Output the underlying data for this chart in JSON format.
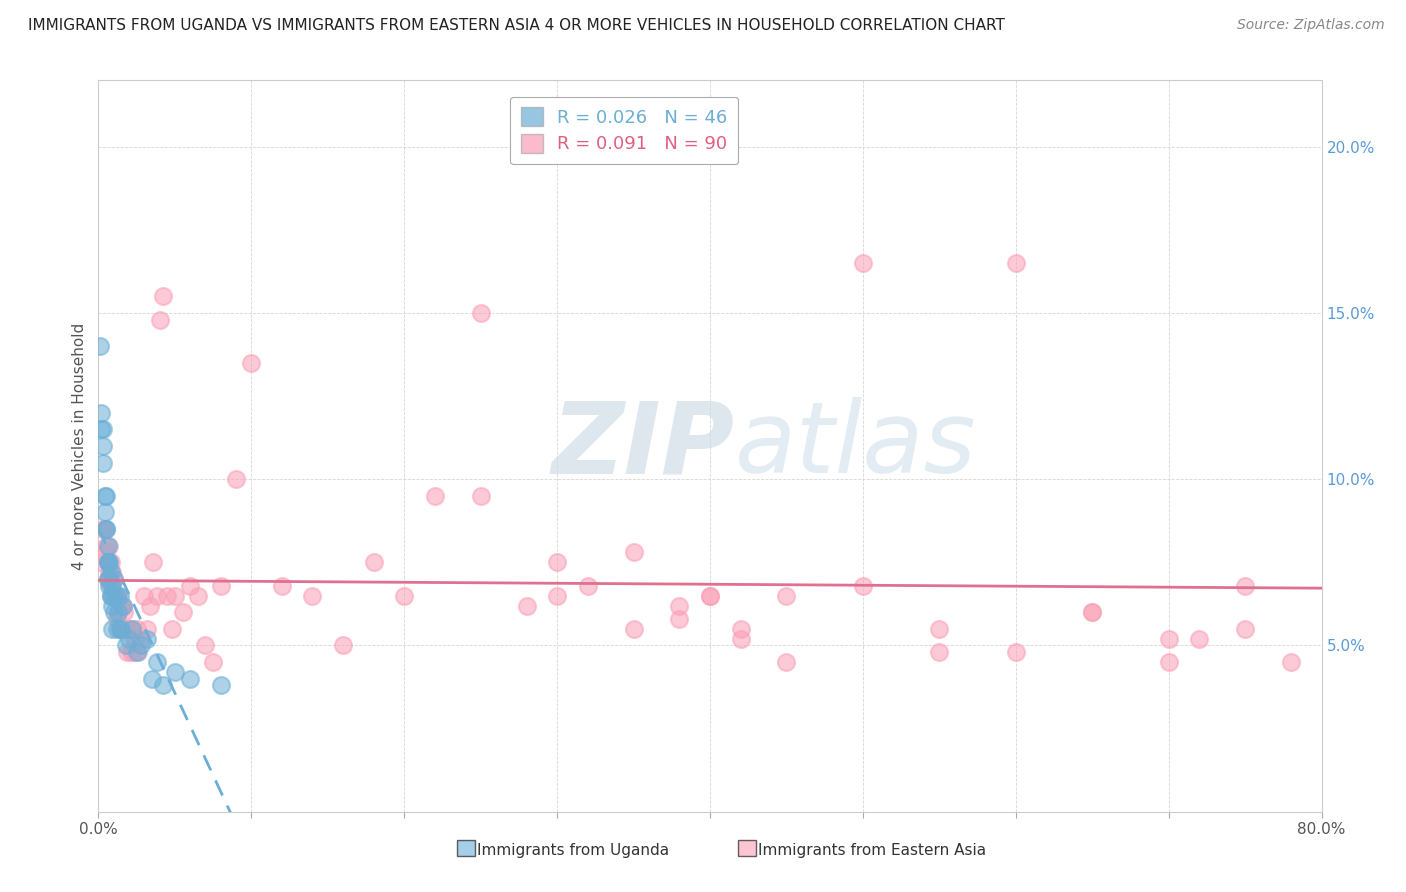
{
  "title": "IMMIGRANTS FROM UGANDA VS IMMIGRANTS FROM EASTERN ASIA 4 OR MORE VEHICLES IN HOUSEHOLD CORRELATION CHART",
  "source": "Source: ZipAtlas.com",
  "ylabel": "4 or more Vehicles in Household",
  "xlabel_blue": "Immigrants from Uganda",
  "xlabel_pink": "Immigrants from Eastern Asia",
  "xlim": [
    0.0,
    0.8
  ],
  "ylim": [
    0.0,
    0.22
  ],
  "blue_R": "0.026",
  "blue_N": "46",
  "pink_R": "0.091",
  "pink_N": "90",
  "blue_color": "#6baed6",
  "pink_color": "#fa9fb5",
  "watermark_zip": "ZIP",
  "watermark_atlas": "atlas",
  "blue_scatter_x": [
    0.001,
    0.002,
    0.002,
    0.003,
    0.003,
    0.003,
    0.004,
    0.004,
    0.005,
    0.005,
    0.005,
    0.006,
    0.006,
    0.006,
    0.006,
    0.007,
    0.007,
    0.007,
    0.008,
    0.008,
    0.008,
    0.009,
    0.009,
    0.009,
    0.01,
    0.01,
    0.01,
    0.012,
    0.012,
    0.013,
    0.014,
    0.014,
    0.015,
    0.016,
    0.018,
    0.02,
    0.022,
    0.025,
    0.028,
    0.032,
    0.035,
    0.038,
    0.042,
    0.05,
    0.06,
    0.08
  ],
  "blue_scatter_y": [
    0.14,
    0.12,
    0.115,
    0.105,
    0.115,
    0.11,
    0.095,
    0.09,
    0.085,
    0.095,
    0.085,
    0.08,
    0.075,
    0.075,
    0.07,
    0.075,
    0.07,
    0.068,
    0.065,
    0.072,
    0.065,
    0.068,
    0.062,
    0.055,
    0.07,
    0.065,
    0.06,
    0.065,
    0.055,
    0.06,
    0.065,
    0.055,
    0.055,
    0.062,
    0.05,
    0.052,
    0.055,
    0.048,
    0.05,
    0.052,
    0.04,
    0.045,
    0.038,
    0.042,
    0.04,
    0.038
  ],
  "pink_scatter_x": [
    0.002,
    0.003,
    0.004,
    0.004,
    0.005,
    0.006,
    0.006,
    0.007,
    0.007,
    0.008,
    0.008,
    0.009,
    0.009,
    0.01,
    0.01,
    0.011,
    0.012,
    0.012,
    0.013,
    0.013,
    0.014,
    0.015,
    0.015,
    0.016,
    0.016,
    0.017,
    0.018,
    0.019,
    0.02,
    0.021,
    0.022,
    0.023,
    0.024,
    0.025,
    0.026,
    0.028,
    0.03,
    0.032,
    0.034,
    0.036,
    0.038,
    0.04,
    0.042,
    0.045,
    0.048,
    0.05,
    0.055,
    0.06,
    0.065,
    0.07,
    0.075,
    0.08,
    0.09,
    0.1,
    0.12,
    0.14,
    0.16,
    0.18,
    0.2,
    0.22,
    0.25,
    0.28,
    0.3,
    0.35,
    0.38,
    0.4,
    0.42,
    0.45,
    0.5,
    0.55,
    0.6,
    0.65,
    0.7,
    0.72,
    0.75,
    0.78,
    0.5,
    0.6,
    0.35,
    0.4,
    0.55,
    0.45,
    0.75,
    0.7,
    0.3,
    0.25,
    0.65,
    0.38,
    0.42,
    0.32
  ],
  "pink_scatter_y": [
    0.075,
    0.085,
    0.085,
    0.078,
    0.08,
    0.075,
    0.07,
    0.08,
    0.072,
    0.075,
    0.068,
    0.072,
    0.065,
    0.07,
    0.065,
    0.065,
    0.065,
    0.058,
    0.065,
    0.06,
    0.055,
    0.062,
    0.055,
    0.062,
    0.055,
    0.06,
    0.055,
    0.048,
    0.055,
    0.048,
    0.055,
    0.048,
    0.052,
    0.055,
    0.048,
    0.052,
    0.065,
    0.055,
    0.062,
    0.075,
    0.065,
    0.148,
    0.155,
    0.065,
    0.055,
    0.065,
    0.06,
    0.068,
    0.065,
    0.05,
    0.045,
    0.068,
    0.1,
    0.135,
    0.068,
    0.065,
    0.05,
    0.075,
    0.065,
    0.095,
    0.095,
    0.062,
    0.075,
    0.078,
    0.058,
    0.065,
    0.055,
    0.065,
    0.068,
    0.055,
    0.048,
    0.06,
    0.045,
    0.052,
    0.055,
    0.045,
    0.165,
    0.165,
    0.055,
    0.065,
    0.048,
    0.045,
    0.068,
    0.052,
    0.065,
    0.15,
    0.06,
    0.062,
    0.052,
    0.068
  ]
}
